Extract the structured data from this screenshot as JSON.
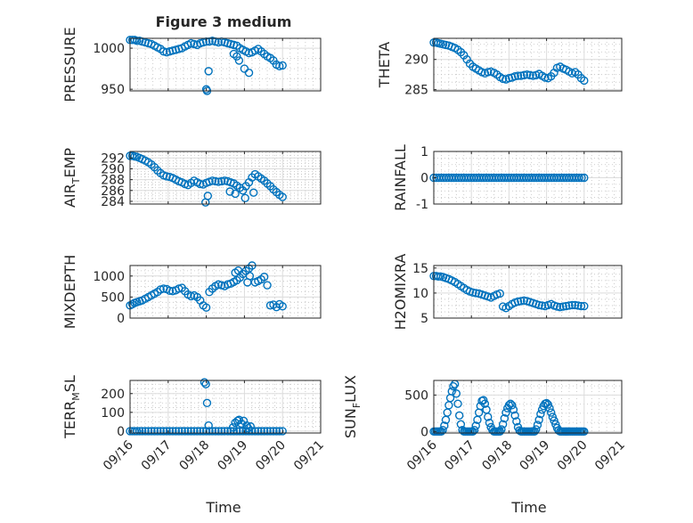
{
  "figure_title": "Figure 3 medium",
  "colors": {
    "marker": "#0072BD",
    "axis": "#262626",
    "grid": "#dcdcdc",
    "background": "#ffffff"
  },
  "chart_data": [
    {
      "id": "pressure",
      "type": "scatter",
      "ylabel": "PRESSURE",
      "title": "Figure 3 medium",
      "ylim": [
        948,
        1012
      ],
      "yticks": [
        950,
        1000
      ],
      "ytick_labels": [
        "950",
        "1000"
      ],
      "xlim": [
        0,
        5
      ],
      "xticks": [
        0,
        1,
        2,
        3,
        4,
        5
      ],
      "x": [
        0.0,
        0.06,
        0.12,
        0.18,
        0.25,
        0.32,
        0.4,
        0.48,
        0.56,
        0.64,
        0.72,
        0.8,
        0.88,
        0.96,
        1.04,
        1.12,
        1.2,
        1.28,
        1.36,
        1.44,
        1.52,
        1.6,
        1.68,
        1.76,
        1.84,
        1.92,
        2.0,
        2.08,
        2.16,
        2.24,
        2.32,
        2.4,
        2.48,
        2.56,
        2.64,
        2.72,
        2.8,
        2.88,
        2.96,
        3.04,
        3.12,
        3.2,
        3.28,
        3.36,
        3.44,
        3.52,
        3.6,
        3.68,
        3.76,
        3.84,
        3.92,
        4.0,
        2.0,
        2.02,
        2.06,
        2.8,
        2.86,
        3.0,
        2.72,
        3.12
      ],
      "y": [
        1010,
        1010,
        1010,
        1009,
        1009,
        1008,
        1007,
        1006,
        1005,
        1003,
        1001,
        999,
        996,
        995,
        996,
        997,
        998,
        999,
        1000,
        1002,
        1004,
        1006,
        1005,
        1004,
        1006,
        1007,
        1008,
        1008,
        1009,
        1008,
        1007,
        1008,
        1007,
        1006,
        1005,
        1004,
        1003,
        1000,
        998,
        996,
        994,
        995,
        997,
        999,
        996,
        993,
        990,
        988,
        985,
        980,
        978,
        979,
        950,
        948,
        972,
        990,
        985,
        975,
        993,
        970
      ]
    },
    {
      "id": "theta",
      "type": "scatter",
      "ylabel": "THETA",
      "ylim": [
        284.8,
        293.5
      ],
      "yticks": [
        285,
        290
      ],
      "ytick_labels": [
        "285",
        "290"
      ],
      "xlim": [
        0,
        5
      ],
      "xticks": [
        0,
        1,
        2,
        3,
        4,
        5
      ],
      "x": [
        0.0,
        0.06,
        0.12,
        0.18,
        0.25,
        0.32,
        0.4,
        0.48,
        0.56,
        0.64,
        0.72,
        0.8,
        0.88,
        0.96,
        1.04,
        1.12,
        1.2,
        1.28,
        1.36,
        1.44,
        1.52,
        1.6,
        1.68,
        1.76,
        1.84,
        1.92,
        2.0,
        2.08,
        2.16,
        2.24,
        2.32,
        2.4,
        2.48,
        2.56,
        2.64,
        2.72,
        2.8,
        2.88,
        2.96,
        3.04,
        3.12,
        3.2,
        3.28,
        3.36,
        3.44,
        3.52,
        3.6,
        3.68,
        3.76,
        3.84,
        3.92,
        4.0
      ],
      "y": [
        292.8,
        292.8,
        292.7,
        292.6,
        292.5,
        292.4,
        292.3,
        292.1,
        291.9,
        291.6,
        291.2,
        290.7,
        290.0,
        289.3,
        288.8,
        288.5,
        288.2,
        287.9,
        287.7,
        287.9,
        288.0,
        287.8,
        287.5,
        287.1,
        286.8,
        286.7,
        286.9,
        287.0,
        287.2,
        287.3,
        287.3,
        287.4,
        287.5,
        287.4,
        287.3,
        287.4,
        287.6,
        287.3,
        287.0,
        286.9,
        287.2,
        287.8,
        288.6,
        288.8,
        288.5,
        288.3,
        288.0,
        287.7,
        287.9,
        287.5,
        286.9,
        286.5
      ]
    },
    {
      "id": "air_temp",
      "type": "scatter",
      "ylabel": "AIR",
      "ylabel_sub": "T",
      "ylabel_suffix": "EMP",
      "ylim": [
        283.5,
        293.2
      ],
      "yticks": [
        284,
        286,
        288,
        290,
        292
      ],
      "ytick_labels": [
        "284",
        "286",
        "288",
        "290",
        "292"
      ],
      "xlim": [
        0,
        5
      ],
      "xticks": [
        0,
        1,
        2,
        3,
        4,
        5
      ],
      "x": [
        0.0,
        0.06,
        0.12,
        0.18,
        0.25,
        0.32,
        0.4,
        0.48,
        0.56,
        0.64,
        0.72,
        0.8,
        0.88,
        0.96,
        1.04,
        1.12,
        1.2,
        1.28,
        1.36,
        1.44,
        1.52,
        1.6,
        1.68,
        1.76,
        1.84,
        1.92,
        2.0,
        2.08,
        2.16,
        2.24,
        2.32,
        2.4,
        2.48,
        2.56,
        2.64,
        2.72,
        2.8,
        2.88,
        2.96,
        3.04,
        3.12,
        3.2,
        3.28,
        3.36,
        3.44,
        3.52,
        3.6,
        3.68,
        3.76,
        3.84,
        3.92,
        4.0,
        1.98,
        2.04,
        2.62,
        2.76,
        3.02,
        3.24
      ],
      "y": [
        292.4,
        292.4,
        292.3,
        292.2,
        292.0,
        291.8,
        291.5,
        291.2,
        290.8,
        290.3,
        289.7,
        289.2,
        288.8,
        288.6,
        288.5,
        288.3,
        288.0,
        287.7,
        287.5,
        287.2,
        287.0,
        287.4,
        287.8,
        287.5,
        287.2,
        287.1,
        287.4,
        287.6,
        287.8,
        287.7,
        287.6,
        287.7,
        287.8,
        287.7,
        287.5,
        287.3,
        286.9,
        286.5,
        286.0,
        286.8,
        287.5,
        288.4,
        289.0,
        288.6,
        288.2,
        287.8,
        287.3,
        286.8,
        286.2,
        285.7,
        285.2,
        284.8,
        283.8,
        285.0,
        285.8,
        285.4,
        284.6,
        285.6
      ]
    },
    {
      "id": "rainfall",
      "type": "scatter",
      "ylabel": "RAINFALL",
      "ylim": [
        -1,
        1
      ],
      "yticks": [
        -1,
        0,
        1
      ],
      "ytick_labels": [
        "-1",
        "0",
        "1"
      ],
      "xlim": [
        0,
        5
      ],
      "xticks": [
        0,
        1,
        2,
        3,
        4,
        5
      ],
      "x_start": 0.0,
      "x_end": 4.0,
      "count": 61,
      "value": 0
    },
    {
      "id": "mixdepth",
      "type": "scatter",
      "ylabel": "MIXDEPTH",
      "ylim": [
        0,
        1250
      ],
      "yticks": [
        0,
        500,
        1000
      ],
      "ytick_labels": [
        "0",
        "500",
        "1000"
      ],
      "xlim": [
        0,
        5
      ],
      "xticks": [
        0,
        1,
        2,
        3,
        4,
        5
      ],
      "x": [
        0.0,
        0.06,
        0.12,
        0.18,
        0.25,
        0.32,
        0.4,
        0.48,
        0.56,
        0.64,
        0.72,
        0.8,
        0.88,
        0.96,
        1.04,
        1.12,
        1.2,
        1.28,
        1.36,
        1.44,
        1.52,
        1.6,
        1.68,
        1.76,
        1.84,
        1.92,
        2.0,
        2.08,
        2.16,
        2.24,
        2.32,
        2.4,
        2.48,
        2.56,
        2.64,
        2.72,
        2.8,
        2.88,
        2.96,
        3.04,
        3.12,
        3.2,
        3.28,
        3.36,
        3.44,
        3.52,
        3.6,
        3.68,
        3.76,
        3.84,
        3.92,
        4.0,
        2.76,
        2.84,
        3.14,
        3.08
      ],
      "y": [
        300,
        330,
        360,
        380,
        400,
        420,
        460,
        500,
        540,
        580,
        620,
        680,
        700,
        690,
        650,
        640,
        660,
        700,
        720,
        640,
        560,
        520,
        540,
        500,
        420,
        300,
        250,
        620,
        700,
        760,
        800,
        780,
        760,
        800,
        820,
        860,
        900,
        960,
        1050,
        1120,
        1180,
        1250,
        850,
        880,
        920,
        980,
        780,
        300,
        320,
        260,
        330,
        280,
        1080,
        1130,
        1000,
        850
      ]
    },
    {
      "id": "h2omixra",
      "type": "scatter",
      "ylabel": "H2OMIXRA",
      "ylim": [
        5,
        15.5
      ],
      "yticks": [
        5,
        10,
        15
      ],
      "ytick_labels": [
        "5",
        "10",
        "15"
      ],
      "xlim": [
        0,
        5
      ],
      "xticks": [
        0,
        1,
        2,
        3,
        4,
        5
      ],
      "x": [
        0.0,
        0.06,
        0.12,
        0.18,
        0.25,
        0.32,
        0.4,
        0.48,
        0.56,
        0.64,
        0.72,
        0.8,
        0.88,
        0.96,
        1.04,
        1.12,
        1.2,
        1.28,
        1.36,
        1.44,
        1.52,
        1.6,
        1.68,
        1.76,
        1.84,
        1.92,
        2.0,
        2.08,
        2.16,
        2.24,
        2.32,
        2.4,
        2.48,
        2.56,
        2.64,
        2.72,
        2.8,
        2.88,
        2.96,
        3.04,
        3.12,
        3.2,
        3.28,
        3.36,
        3.44,
        3.52,
        3.6,
        3.68,
        3.76,
        3.84,
        3.92,
        4.0
      ],
      "y": [
        13.4,
        13.4,
        13.3,
        13.3,
        13.2,
        13.0,
        12.8,
        12.5,
        12.2,
        11.8,
        11.4,
        11.0,
        10.6,
        10.3,
        10.1,
        10.0,
        9.9,
        9.7,
        9.5,
        9.3,
        9.1,
        9.4,
        9.7,
        9.9,
        7.3,
        7.0,
        7.4,
        7.8,
        8.1,
        8.3,
        8.4,
        8.5,
        8.4,
        8.2,
        8.0,
        7.8,
        7.6,
        7.5,
        7.4,
        7.6,
        7.8,
        7.5,
        7.3,
        7.2,
        7.3,
        7.4,
        7.5,
        7.6,
        7.6,
        7.5,
        7.4,
        7.4
      ]
    },
    {
      "id": "terr_msl",
      "type": "scatter",
      "ylabel": "TERR",
      "ylabel_sub": "M",
      "ylabel_suffix": "SL",
      "ylim": [
        -10,
        270
      ],
      "yticks": [
        0,
        100,
        200
      ],
      "ytick_labels": [
        "0",
        "100",
        "200"
      ],
      "xlim": [
        0,
        5
      ],
      "xticks": [
        0,
        1,
        2,
        3,
        4,
        5
      ],
      "x": [
        0.0,
        0.06,
        0.12,
        0.18,
        0.25,
        0.32,
        0.4,
        0.48,
        0.56,
        0.64,
        0.72,
        0.8,
        0.88,
        0.96,
        1.04,
        1.12,
        1.2,
        1.28,
        1.36,
        1.44,
        1.52,
        1.6,
        1.68,
        1.76,
        1.84,
        1.92,
        2.0,
        2.08,
        2.16,
        2.24,
        2.32,
        2.4,
        2.48,
        2.56,
        2.64,
        2.72,
        2.8,
        2.88,
        2.96,
        3.04,
        3.12,
        3.2,
        3.28,
        3.36,
        3.44,
        3.52,
        3.6,
        3.68,
        3.76,
        3.84,
        3.92,
        4.0,
        1.95,
        1.99,
        2.02,
        2.06,
        2.7,
        2.76,
        2.82,
        2.86,
        2.92,
        2.98,
        3.06,
        3.1,
        3.16
      ],
      "y": [
        0,
        0,
        0,
        0,
        0,
        0,
        0,
        0,
        0,
        0,
        0,
        0,
        0,
        0,
        0,
        0,
        0,
        0,
        0,
        0,
        0,
        0,
        0,
        0,
        0,
        0,
        0,
        0,
        0,
        0,
        0,
        0,
        0,
        0,
        0,
        0,
        0,
        0,
        0,
        0,
        0,
        0,
        0,
        0,
        0,
        0,
        0,
        0,
        0,
        0,
        0,
        0,
        260,
        250,
        150,
        30,
        20,
        45,
        55,
        60,
        40,
        55,
        30,
        15,
        25
      ]
    },
    {
      "id": "sun_flux",
      "type": "scatter",
      "ylabel": "SUN",
      "ylabel_sub": "F",
      "ylabel_suffix": "LUX",
      "ylim": [
        -20,
        700
      ],
      "yticks": [
        0,
        500
      ],
      "ytick_labels": [
        "0",
        "500"
      ],
      "xlim": [
        0,
        5
      ],
      "xticks": [
        0,
        1,
        2,
        3,
        4,
        5
      ],
      "x": [
        0.0,
        0.04,
        0.08,
        0.12,
        0.16,
        0.2,
        0.24,
        0.28,
        0.32,
        0.36,
        0.4,
        0.44,
        0.48,
        0.52,
        0.56,
        0.6,
        0.64,
        0.68,
        0.72,
        0.76,
        0.8,
        0.84,
        0.88,
        0.92,
        0.96,
        1.0,
        1.04,
        1.08,
        1.12,
        1.16,
        1.2,
        1.24,
        1.28,
        1.32,
        1.36,
        1.4,
        1.44,
        1.48,
        1.52,
        1.56,
        1.6,
        1.64,
        1.68,
        1.72,
        1.76,
        1.8,
        1.84,
        1.88,
        1.92,
        1.96,
        2.0,
        2.04,
        2.08,
        2.12,
        2.16,
        2.2,
        2.24,
        2.28,
        2.32,
        2.36,
        2.4,
        2.44,
        2.48,
        2.52,
        2.56,
        2.6,
        2.64,
        2.68,
        2.72,
        2.76,
        2.8,
        2.84,
        2.88,
        2.92,
        2.96,
        3.0,
        3.04,
        3.08,
        3.12,
        3.16,
        3.2,
        3.24,
        3.28,
        3.32,
        3.36,
        3.4,
        3.44,
        3.48,
        3.52,
        3.56,
        3.6,
        3.64,
        3.68,
        3.72,
        3.76,
        3.8,
        3.84,
        3.88,
        3.92,
        3.96,
        4.0
      ],
      "y": [
        0,
        0,
        0,
        0,
        0,
        0,
        20,
        80,
        160,
        260,
        360,
        460,
        550,
        620,
        650,
        520,
        380,
        220,
        100,
        20,
        0,
        0,
        0,
        0,
        0,
        0,
        0,
        20,
        80,
        160,
        260,
        350,
        420,
        430,
        380,
        300,
        200,
        120,
        60,
        20,
        0,
        0,
        0,
        0,
        0,
        30,
        100,
        180,
        260,
        320,
        360,
        380,
        360,
        300,
        220,
        140,
        60,
        15,
        0,
        0,
        0,
        0,
        0,
        0,
        0,
        0,
        0,
        0,
        30,
        90,
        160,
        240,
        300,
        350,
        380,
        390,
        370,
        320,
        260,
        200,
        150,
        100,
        50,
        15,
        0,
        0,
        0,
        0,
        0,
        0,
        0,
        0,
        0,
        0,
        0,
        0,
        0,
        0,
        0,
        0,
        0
      ]
    }
  ],
  "x_tick_labels": [
    "09/16",
    "09/17",
    "09/18",
    "09/19",
    "09/20",
    "09/21"
  ],
  "xlabel": "Time"
}
